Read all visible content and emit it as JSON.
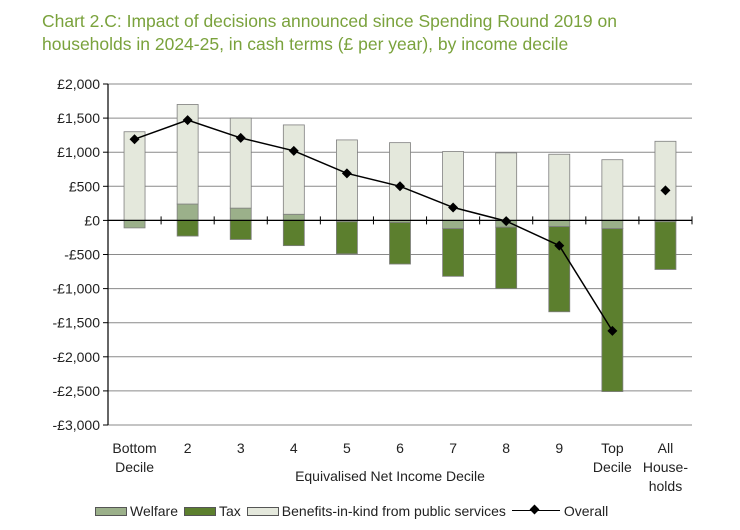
{
  "title_lines": [
    "Chart 2.C: Impact of decisions announced since Spending Round 2019 on",
    "households in 2024-25, in cash terms (£ per year), by income decile"
  ],
  "chart_data": {
    "type": "bar",
    "stacked": true,
    "title": "Chart 2.C: Impact of decisions announced since Spending Round 2019 on households in 2024-25, in cash terms (£ per year), by income decile",
    "xlabel": "Equivalised Net Income Decile",
    "ylabel": "",
    "ylim": [
      -3000,
      2000
    ],
    "yticks": [
      2000,
      1500,
      1000,
      500,
      0,
      -500,
      -1000,
      -1500,
      -2000,
      -2500,
      -3000
    ],
    "ytick_labels": [
      "£2,000",
      "£1,500",
      "£1,000",
      "£500",
      "£0",
      "-£500",
      "-£1,000",
      "-£1,500",
      "-£2,000",
      "-£2,500",
      "-£3,000"
    ],
    "categories": [
      "Bottom Decile",
      "2",
      "3",
      "4",
      "5",
      "6",
      "7",
      "8",
      "9",
      "Top Decile",
      "All Households"
    ],
    "category_label_lines": [
      [
        "Bottom",
        "Decile"
      ],
      [
        "2"
      ],
      [
        "3"
      ],
      [
        "4"
      ],
      [
        "5"
      ],
      [
        "6"
      ],
      [
        "7"
      ],
      [
        "8"
      ],
      [
        "9"
      ],
      [
        "Top",
        "Decile"
      ],
      [
        "All",
        "House-",
        "holds"
      ]
    ],
    "series": [
      {
        "name": "Welfare",
        "kind": "bar",
        "color": "#9bb08a",
        "values": [
          -110,
          240,
          180,
          90,
          -20,
          -30,
          -120,
          -100,
          -90,
          -120,
          -20
        ]
      },
      {
        "name": "Tax",
        "kind": "bar",
        "color": "#5c7f2e",
        "values": [
          0,
          -230,
          -280,
          -370,
          -470,
          -610,
          -700,
          -900,
          -1250,
          -2390,
          -700
        ]
      },
      {
        "name": "Benefits-in-kind from public services",
        "kind": "bar",
        "color": "#e4e8dc",
        "values": [
          1300,
          1460,
          1320,
          1310,
          1180,
          1140,
          1010,
          990,
          970,
          890,
          1160
        ]
      },
      {
        "name": "Overall",
        "kind": "line",
        "color": "#000000",
        "values": [
          1190,
          1470,
          1210,
          1020,
          690,
          500,
          190,
          -10,
          -370,
          -1620,
          440
        ],
        "connect_until_index": 9
      }
    ],
    "grid": true,
    "legend": "bottom"
  }
}
